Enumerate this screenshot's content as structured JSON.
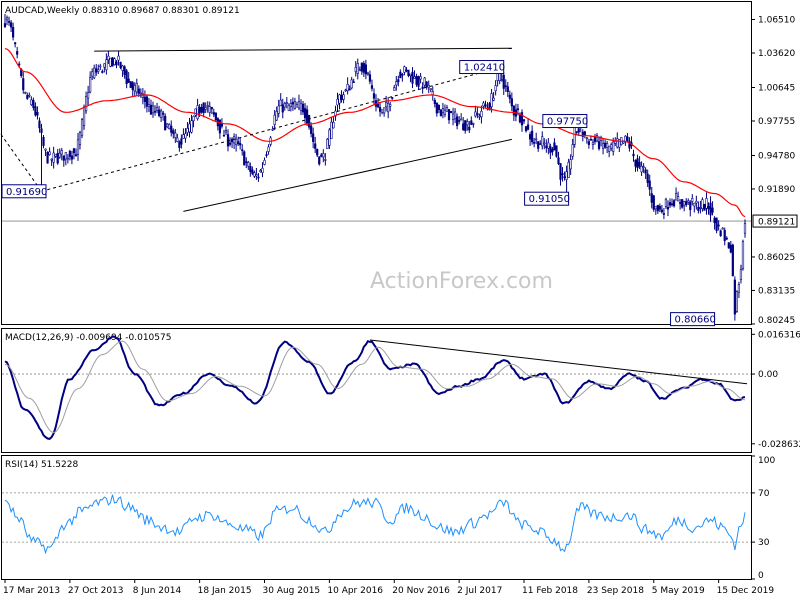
{
  "header": {
    "price_title": "AUDCAD,Weekly  0.88310 0.89687 0.88301 0.89121",
    "macd_title": "MACD(12,26,9) -0.009694 -0.010575",
    "rsi_title": "RSI(14) 51.5228"
  },
  "watermark": "ActionForex.com",
  "colors": {
    "price": "#000080",
    "ma": "#ff0000",
    "macd": "#000080",
    "signal": "#a0a0a0",
    "rsi": "#1e90ff",
    "trendline": "#000000",
    "border": "#000000",
    "grid": "#888888"
  },
  "chart_data": [
    {
      "type": "candlestick",
      "pane": "price",
      "ylim": [
        0.8024,
        1.0802
      ],
      "price_ticks": [
        "1.06510",
        "1.03620",
        "1.00645",
        "0.97755",
        "0.94780",
        "0.91890",
        "0.89121",
        "0.86025",
        "0.83135",
        "0.80245"
      ],
      "tick_values": [
        1.0651,
        1.0362,
        1.00645,
        0.97755,
        0.9478,
        0.9189,
        0.89121,
        0.86025,
        0.83135,
        0.80245
      ],
      "current_price_label": "0.89121",
      "current_price": 0.89121,
      "x_labels": [
        "17 Mar 2013",
        "27 Oct 2013",
        "8 Jun 2014",
        "18 Jan 2015",
        "30 Aug 2015",
        "10 Apr 2016",
        "20 Nov 2016",
        "2 Jul 2017",
        "11 Feb 2018",
        "23 Sep 2018",
        "5 May 2019",
        "15 Dec 2019"
      ],
      "x_label_index": [
        0,
        32,
        64,
        96,
        128,
        160,
        192,
        224,
        256,
        288,
        320,
        352
      ],
      "bar_count": 366,
      "ma_label": "",
      "anchors": [
        {
          "i": 0,
          "v": 1.065
        },
        {
          "i": 12,
          "v": 0.995
        },
        {
          "i": 22,
          "v": 0.945
        },
        {
          "i": 34,
          "v": 0.95
        },
        {
          "i": 44,
          "v": 1.02
        },
        {
          "i": 54,
          "v": 1.03
        },
        {
          "i": 64,
          "v": 1.005
        },
        {
          "i": 74,
          "v": 0.985
        },
        {
          "i": 86,
          "v": 0.96
        },
        {
          "i": 98,
          "v": 0.99
        },
        {
          "i": 112,
          "v": 0.96
        },
        {
          "i": 124,
          "v": 0.93
        },
        {
          "i": 136,
          "v": 0.99
        },
        {
          "i": 146,
          "v": 0.99
        },
        {
          "i": 156,
          "v": 0.945
        },
        {
          "i": 166,
          "v": 1.0
        },
        {
          "i": 176,
          "v": 1.025
        },
        {
          "i": 186,
          "v": 0.985
        },
        {
          "i": 196,
          "v": 1.02
        },
        {
          "i": 206,
          "v": 1.01
        },
        {
          "i": 216,
          "v": 0.985
        },
        {
          "i": 228,
          "v": 0.975
        },
        {
          "i": 238,
          "v": 0.99
        },
        {
          "i": 244,
          "v": 1.015
        },
        {
          "i": 252,
          "v": 0.985
        },
        {
          "i": 262,
          "v": 0.96
        },
        {
          "i": 270,
          "v": 0.955
        },
        {
          "i": 276,
          "v": 0.925
        },
        {
          "i": 282,
          "v": 0.97
        },
        {
          "i": 290,
          "v": 0.96
        },
        {
          "i": 298,
          "v": 0.955
        },
        {
          "i": 306,
          "v": 0.96
        },
        {
          "i": 314,
          "v": 0.935
        },
        {
          "i": 322,
          "v": 0.9
        },
        {
          "i": 330,
          "v": 0.91
        },
        {
          "i": 338,
          "v": 0.905
        },
        {
          "i": 346,
          "v": 0.905
        },
        {
          "i": 352,
          "v": 0.885
        },
        {
          "i": 358,
          "v": 0.87
        },
        {
          "i": 360,
          "v": 0.815
        },
        {
          "i": 362,
          "v": 0.84
        },
        {
          "i": 365,
          "v": 0.89121
        }
      ],
      "ma_anchors": [
        {
          "i": 0,
          "v": 1.04
        },
        {
          "i": 10,
          "v": 1.02
        },
        {
          "i": 30,
          "v": 0.985
        },
        {
          "i": 50,
          "v": 0.995
        },
        {
          "i": 70,
          "v": 1.0
        },
        {
          "i": 90,
          "v": 0.985
        },
        {
          "i": 110,
          "v": 0.975
        },
        {
          "i": 130,
          "v": 0.96
        },
        {
          "i": 150,
          "v": 0.975
        },
        {
          "i": 170,
          "v": 0.985
        },
        {
          "i": 190,
          "v": 0.995
        },
        {
          "i": 210,
          "v": 1.0
        },
        {
          "i": 230,
          "v": 0.99
        },
        {
          "i": 250,
          "v": 0.985
        },
        {
          "i": 265,
          "v": 0.975
        },
        {
          "i": 285,
          "v": 0.965
        },
        {
          "i": 305,
          "v": 0.96
        },
        {
          "i": 320,
          "v": 0.945
        },
        {
          "i": 335,
          "v": 0.925
        },
        {
          "i": 350,
          "v": 0.915
        },
        {
          "i": 360,
          "v": 0.905
        },
        {
          "i": 365,
          "v": 0.895
        }
      ],
      "level_labels": [
        {
          "text": "0.91690",
          "i": 0,
          "v": 0.9169,
          "side": "left"
        },
        {
          "text": "1.02410",
          "i": 245,
          "v": 1.0241,
          "side": "right"
        },
        {
          "text": "0.97750",
          "i": 286,
          "v": 0.9775,
          "side": "right"
        },
        {
          "text": "0.91050",
          "i": 277,
          "v": 0.9105,
          "side": "right"
        },
        {
          "text": "0.80660",
          "i": 349,
          "v": 0.8066,
          "side": "right"
        }
      ],
      "trendlines": [
        {
          "i1": 44,
          "v1": 1.0378,
          "i2": 250,
          "v2": 1.0403,
          "dashed": false
        },
        {
          "i1": 88,
          "v1": 0.8996,
          "i2": 250,
          "v2": 0.9617,
          "dashed": false
        },
        {
          "i1": 18,
          "v1": 0.9169,
          "i2": 245,
          "v2": 1.0241,
          "dashed": true
        },
        {
          "i1": -2,
          "v1": 0.966,
          "i2": 18,
          "v2": 0.9169,
          "dashed": true
        }
      ]
    },
    {
      "type": "line",
      "pane": "macd",
      "ylim": [
        -0.032,
        0.0185
      ],
      "ticks": [
        "0.016316",
        "0.00",
        "-0.028632"
      ],
      "tick_values": [
        0.016316,
        0.0,
        -0.028632
      ],
      "series": [
        {
          "role": "macd",
          "anchors": [
            {
              "i": 0,
              "v": 0.005
            },
            {
              "i": 10,
              "v": -0.015
            },
            {
              "i": 22,
              "v": -0.0265
            },
            {
              "i": 32,
              "v": -0.002
            },
            {
              "i": 44,
              "v": 0.01
            },
            {
              "i": 54,
              "v": 0.0155
            },
            {
              "i": 64,
              "v": 0.0
            },
            {
              "i": 76,
              "v": -0.013
            },
            {
              "i": 88,
              "v": -0.008
            },
            {
              "i": 100,
              "v": 0.0
            },
            {
              "i": 112,
              "v": -0.005
            },
            {
              "i": 124,
              "v": -0.012
            },
            {
              "i": 138,
              "v": 0.013
            },
            {
              "i": 150,
              "v": 0.005
            },
            {
              "i": 160,
              "v": -0.008
            },
            {
              "i": 172,
              "v": 0.005
            },
            {
              "i": 180,
              "v": 0.0135
            },
            {
              "i": 190,
              "v": 0.002
            },
            {
              "i": 202,
              "v": 0.004
            },
            {
              "i": 214,
              "v": -0.008
            },
            {
              "i": 224,
              "v": -0.005
            },
            {
              "i": 234,
              "v": -0.002
            },
            {
              "i": 246,
              "v": 0.0055
            },
            {
              "i": 256,
              "v": -0.002
            },
            {
              "i": 266,
              "v": 0.0
            },
            {
              "i": 276,
              "v": -0.012
            },
            {
              "i": 288,
              "v": -0.003
            },
            {
              "i": 298,
              "v": -0.006
            },
            {
              "i": 308,
              "v": 0.0
            },
            {
              "i": 316,
              "v": -0.003
            },
            {
              "i": 324,
              "v": -0.01
            },
            {
              "i": 334,
              "v": -0.006
            },
            {
              "i": 344,
              "v": -0.002
            },
            {
              "i": 352,
              "v": -0.004
            },
            {
              "i": 360,
              "v": -0.011
            },
            {
              "i": 365,
              "v": -0.0097
            }
          ]
        },
        {
          "role": "signal",
          "anchors": [
            {
              "i": 0,
              "v": 0.004
            },
            {
              "i": 12,
              "v": -0.01
            },
            {
              "i": 24,
              "v": -0.024
            },
            {
              "i": 36,
              "v": -0.006
            },
            {
              "i": 48,
              "v": 0.008
            },
            {
              "i": 58,
              "v": 0.0135
            },
            {
              "i": 68,
              "v": 0.002
            },
            {
              "i": 80,
              "v": -0.011
            },
            {
              "i": 92,
              "v": -0.008
            },
            {
              "i": 104,
              "v": -0.001
            },
            {
              "i": 116,
              "v": -0.005
            },
            {
              "i": 128,
              "v": -0.009
            },
            {
              "i": 142,
              "v": 0.011
            },
            {
              "i": 154,
              "v": 0.004
            },
            {
              "i": 164,
              "v": -0.006
            },
            {
              "i": 176,
              "v": 0.004
            },
            {
              "i": 184,
              "v": 0.011
            },
            {
              "i": 194,
              "v": 0.003
            },
            {
              "i": 206,
              "v": 0.002
            },
            {
              "i": 218,
              "v": -0.006
            },
            {
              "i": 228,
              "v": -0.005
            },
            {
              "i": 238,
              "v": -0.002
            },
            {
              "i": 250,
              "v": 0.004
            },
            {
              "i": 260,
              "v": -0.001
            },
            {
              "i": 270,
              "v": -0.002
            },
            {
              "i": 280,
              "v": -0.01
            },
            {
              "i": 292,
              "v": -0.004
            },
            {
              "i": 302,
              "v": -0.005
            },
            {
              "i": 312,
              "v": -0.001
            },
            {
              "i": 320,
              "v": -0.004
            },
            {
              "i": 328,
              "v": -0.008
            },
            {
              "i": 338,
              "v": -0.005
            },
            {
              "i": 348,
              "v": -0.003
            },
            {
              "i": 356,
              "v": -0.006
            },
            {
              "i": 365,
              "v": -0.0106
            }
          ]
        }
      ],
      "trendline": {
        "i1": 180,
        "v1": 0.014,
        "i2": 366,
        "v2": -0.004
      }
    },
    {
      "type": "line",
      "pane": "rsi",
      "ylim": [
        0,
        100
      ],
      "ticks": [
        "100",
        "70",
        "30",
        "0"
      ],
      "tick_values": [
        100,
        70,
        30,
        0
      ],
      "levels": [
        70,
        30
      ],
      "anchors": [
        {
          "i": 0,
          "v": 65
        },
        {
          "i": 6,
          "v": 50
        },
        {
          "i": 14,
          "v": 30
        },
        {
          "i": 22,
          "v": 25
        },
        {
          "i": 30,
          "v": 45
        },
        {
          "i": 38,
          "v": 55
        },
        {
          "i": 46,
          "v": 62
        },
        {
          "i": 54,
          "v": 65
        },
        {
          "i": 62,
          "v": 58
        },
        {
          "i": 70,
          "v": 48
        },
        {
          "i": 78,
          "v": 42
        },
        {
          "i": 86,
          "v": 38
        },
        {
          "i": 94,
          "v": 50
        },
        {
          "i": 102,
          "v": 52
        },
        {
          "i": 110,
          "v": 45
        },
        {
          "i": 118,
          "v": 40
        },
        {
          "i": 126,
          "v": 35
        },
        {
          "i": 134,
          "v": 55
        },
        {
          "i": 142,
          "v": 58
        },
        {
          "i": 150,
          "v": 48
        },
        {
          "i": 158,
          "v": 38
        },
        {
          "i": 166,
          "v": 55
        },
        {
          "i": 174,
          "v": 62
        },
        {
          "i": 182,
          "v": 62
        },
        {
          "i": 190,
          "v": 48
        },
        {
          "i": 198,
          "v": 58
        },
        {
          "i": 206,
          "v": 52
        },
        {
          "i": 214,
          "v": 42
        },
        {
          "i": 222,
          "v": 38
        },
        {
          "i": 230,
          "v": 45
        },
        {
          "i": 238,
          "v": 52
        },
        {
          "i": 246,
          "v": 62
        },
        {
          "i": 254,
          "v": 45
        },
        {
          "i": 262,
          "v": 40
        },
        {
          "i": 270,
          "v": 32
        },
        {
          "i": 276,
          "v": 25
        },
        {
          "i": 284,
          "v": 58
        },
        {
          "i": 292,
          "v": 52
        },
        {
          "i": 300,
          "v": 50
        },
        {
          "i": 308,
          "v": 52
        },
        {
          "i": 316,
          "v": 40
        },
        {
          "i": 324,
          "v": 35
        },
        {
          "i": 332,
          "v": 48
        },
        {
          "i": 340,
          "v": 42
        },
        {
          "i": 348,
          "v": 48
        },
        {
          "i": 354,
          "v": 42
        },
        {
          "i": 358,
          "v": 35
        },
        {
          "i": 360,
          "v": 28
        },
        {
          "i": 363,
          "v": 45
        },
        {
          "i": 365,
          "v": 51.5
        }
      ]
    }
  ]
}
